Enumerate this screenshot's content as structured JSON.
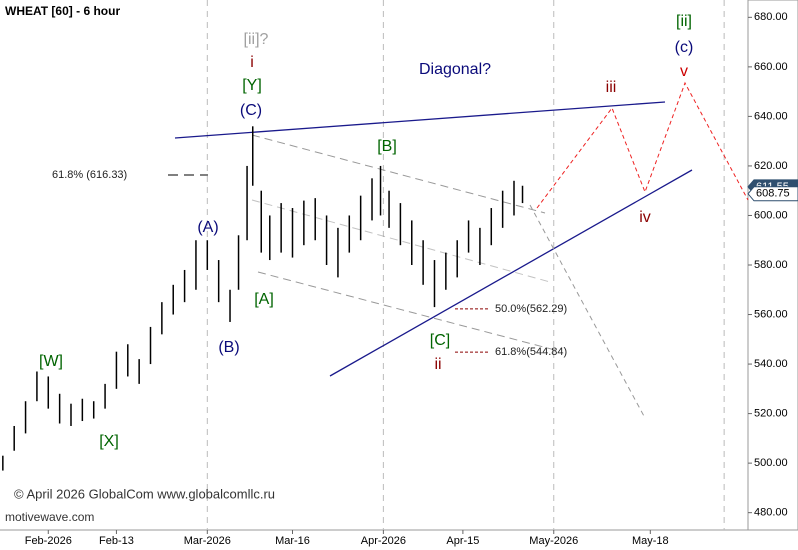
{
  "chart_data": {
    "type": "hilo",
    "title": "WHEAT [60] - 6 hour",
    "x": [
      23,
      25,
      27,
      29,
      31,
      33,
      35,
      37,
      39,
      41,
      43,
      45,
      47,
      49,
      51,
      53,
      55,
      57,
      59,
      61,
      63,
      64.5,
      66,
      67,
      68.5,
      70,
      72,
      74,
      76,
      78,
      80,
      82,
      84,
      86,
      88,
      89.5,
      91,
      93,
      95,
      97,
      99,
      101,
      103,
      105,
      107,
      109,
      111,
      113,
      114.5
    ],
    "low": [
      497,
      505,
      512,
      525,
      522,
      516,
      515,
      517,
      518,
      522,
      530,
      535,
      532,
      540,
      552,
      560,
      565,
      570,
      578,
      565,
      557,
      570,
      590,
      612,
      585,
      582,
      585,
      583,
      588,
      590,
      580,
      575,
      585,
      590,
      598,
      600,
      595,
      588,
      580,
      572,
      563,
      570,
      575,
      585,
      580,
      588,
      595,
      600,
      605
    ],
    "high": [
      503,
      515,
      525,
      537,
      535,
      528,
      524,
      526,
      525,
      532,
      545,
      548,
      542,
      555,
      565,
      572,
      578,
      590,
      590,
      582,
      570,
      592,
      620,
      636,
      610,
      600,
      605,
      603,
      606,
      607,
      600,
      595,
      600,
      608,
      615,
      620,
      610,
      605,
      598,
      590,
      582,
      585,
      590,
      598,
      595,
      603,
      610,
      614,
      612
    ],
    "color": "#000000",
    "xlim": [
      22.5,
      154.2
    ],
    "ylim": [
      473,
      687
    ],
    "yticks": [
      {
        "value": 480,
        "label": "480.00"
      },
      {
        "value": 500,
        "label": "500.00"
      },
      {
        "value": 520,
        "label": "520.00"
      },
      {
        "value": 540,
        "label": "540.00"
      },
      {
        "value": 560,
        "label": "560.00"
      },
      {
        "value": 580,
        "label": "580.00"
      },
      {
        "value": 600,
        "label": "600.00"
      },
      {
        "value": 620,
        "label": "620.00"
      },
      {
        "value": 640,
        "label": "640.00"
      },
      {
        "value": 660,
        "label": "660.00"
      },
      {
        "value": 680,
        "label": "680.00"
      }
    ],
    "xticks": [
      {
        "value": 31,
        "label": "Feb-2026"
      },
      {
        "value": 43,
        "label": "Feb-13"
      },
      {
        "value": 59,
        "label": "Mar-2026"
      },
      {
        "value": 74,
        "label": "Mar-16"
      },
      {
        "value": 90,
        "label": "Apr-2026"
      },
      {
        "value": 104,
        "label": "Apr-15"
      },
      {
        "value": 120,
        "label": "May-2026"
      },
      {
        "value": 137,
        "label": "May-18"
      }
    ],
    "month_lines": [
      59,
      90,
      120,
      150
    ],
    "price_tags": [
      {
        "value": 611.55,
        "color": "#2f4f6f"
      },
      {
        "value": 608.75,
        "color": "#ffffff"
      }
    ],
    "fib_levels": [
      {
        "label": "61.8% (616.33)",
        "value": 616.33
      },
      {
        "label": "50.0%(562.29)",
        "value": 562.29
      },
      {
        "label": "61.8%(544.84)",
        "value": 544.84
      }
    ],
    "waves": [
      {
        "label": "[ii]?",
        "color": "#a0a0a0"
      },
      {
        "label": "i",
        "color": "#8b0000"
      },
      {
        "label": "[Y]",
        "color": "#006400"
      },
      {
        "label": "(C)",
        "color": "#0a0a7a"
      },
      {
        "label": "[B]",
        "color": "#006400"
      },
      {
        "label": "(A)",
        "color": "#0a0a7a"
      },
      {
        "label": "(B)",
        "color": "#0a0a7a"
      },
      {
        "label": "[A]",
        "color": "#006400"
      },
      {
        "label": "[C]",
        "color": "#006400"
      },
      {
        "label": "ii",
        "color": "#8b0000"
      },
      {
        "label": "[W]",
        "color": "#006400"
      },
      {
        "label": "[X]",
        "color": "#006400"
      },
      {
        "label": "iii",
        "color": "#8b0000"
      },
      {
        "label": "iv",
        "color": "#8b0000"
      },
      {
        "label": "v",
        "color": "#cc0000"
      },
      {
        "label": "[ii]",
        "color": "#006400"
      },
      {
        "label": "(c)",
        "color": "#0a0a7a"
      }
    ],
    "annotation": "Diagonal?",
    "copyright": "© April 2026 GlobalCom www.globalcomllc.ru",
    "watermark": "motivewave.com"
  }
}
